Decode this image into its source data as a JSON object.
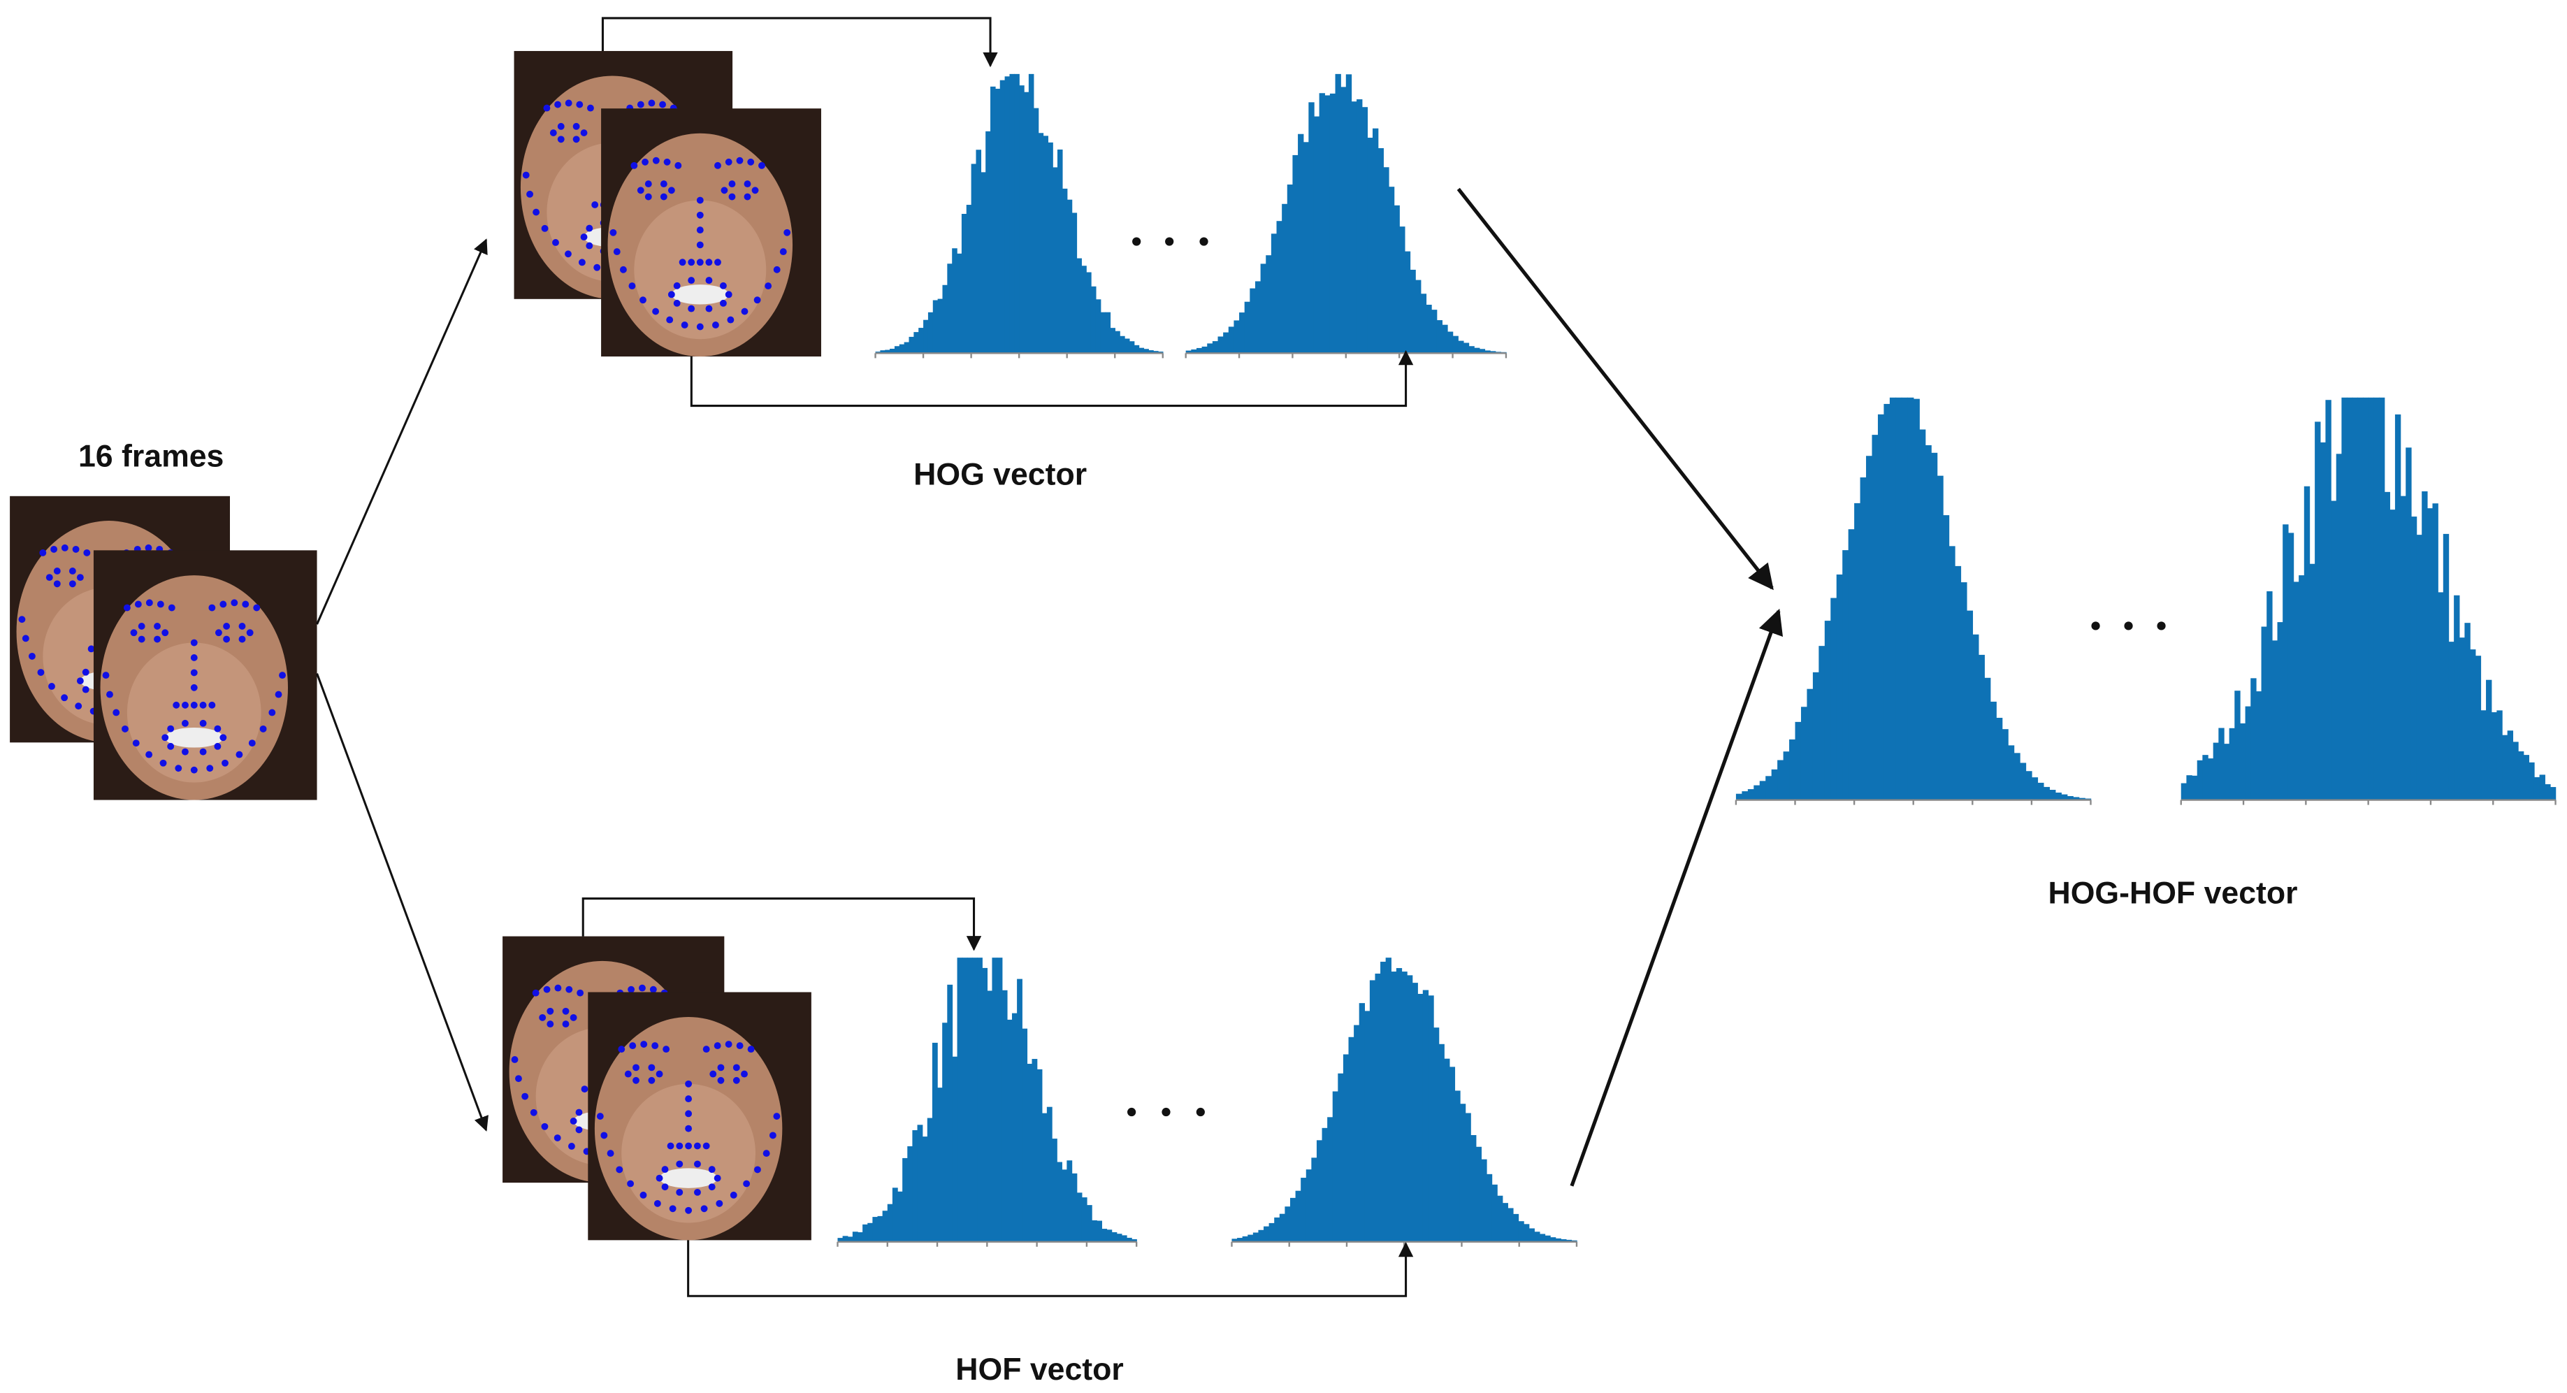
{
  "frames_label": "16 frames",
  "hog_label": "HOG vector",
  "hof_label": "HOF vector",
  "combined_label": "HOG-HOF vector"
}
